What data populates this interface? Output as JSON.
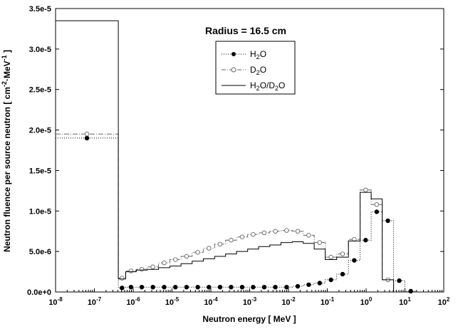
{
  "chart_data": {
    "type": "line",
    "xlabel": "Neutron energy  [ MeV ]",
    "ylabel": "Neutron fluence per source neutron  [ cm^-2·MeV^-1 ]",
    "annotation": "Radius = 16.5 cm",
    "x_scale": "log",
    "xlim": [
      1e-08,
      100
    ],
    "ylim": [
      0,
      3.5e-05
    ],
    "x_ticks": [
      -8,
      -7,
      -6,
      -5,
      -4,
      -3,
      -2,
      -1,
      0,
      1,
      2
    ],
    "y_ticks": [
      "0.0e+0",
      "5.0e-6",
      "1.0e-5",
      "1.5e-5",
      "2.0e-5",
      "2.5e-5",
      "3.0e-5",
      "3.5e-5"
    ],
    "legend_position": "top-center",
    "bin_edges": [
      1e-08,
      4.14e-07,
      6.4e-07,
      1.2e-06,
      2.3e-06,
      4.5e-06,
      8.8e-06,
      1.7e-05,
      3.3e-05,
      6.4e-05,
      0.000125,
      0.00024,
      0.00046,
      0.00089,
      0.0017,
      0.0033,
      0.0064,
      0.0125,
      0.024,
      0.046,
      0.088,
      0.175,
      0.35,
      0.7,
      1.35,
      2.6,
      5.1,
      10,
      20
    ],
    "series": [
      {
        "name": "H2O",
        "label_main": "H",
        "label_sub": "2",
        "label_tail": "O",
        "style": "dotted-filled",
        "values": [
          1.9e-05,
          5e-07,
          6e-07,
          6e-07,
          6e-07,
          6e-07,
          6e-07,
          6e-07,
          6e-07,
          6e-07,
          6e-07,
          6e-07,
          6e-07,
          6e-07,
          6e-07,
          6e-07,
          6e-07,
          7e-07,
          9e-07,
          1.1e-06,
          1.5e-06,
          2.2e-06,
          3.9e-06,
          6.4e-06,
          9.9e-06,
          8.8e-06,
          1.4e-06,
          1e-07
        ]
      },
      {
        "name": "D2O",
        "label_main": "D",
        "label_sub": "2",
        "label_tail": "O",
        "style": "dashdot-open",
        "values": [
          1.95e-05,
          1.7e-06,
          2.6e-06,
          2.8e-06,
          3.1e-06,
          3.6e-06,
          4e-06,
          4.4e-06,
          4.9e-06,
          5.4e-06,
          5.9e-06,
          6.4e-06,
          6.8e-06,
          7.1e-06,
          7.3e-06,
          7.5e-06,
          7.6e-06,
          7.5e-06,
          7e-06,
          6.1e-06,
          4.3e-06,
          4.7e-06,
          6.5e-06,
          1.26e-05,
          1.08e-05,
          1.5e-06
        ]
      },
      {
        "name": "H2O/D2O",
        "label_main": "H",
        "label_sub": "2",
        "label_tail": "O/D",
        "label_sub2": "2",
        "label_tail2": "O",
        "style": "solid",
        "values": [
          3.35e-05,
          1.6e-06,
          2.5e-06,
          2.7e-06,
          2.8e-06,
          3e-06,
          3.2e-06,
          3.5e-06,
          3.8e-06,
          4.1e-06,
          4.4e-06,
          4.7e-06,
          5e-06,
          5.3e-06,
          5.6e-06,
          5.8e-06,
          6.1e-06,
          6.2e-06,
          6e-06,
          5.3e-06,
          4e-06,
          4.3e-06,
          6.3e-06,
          1.23e-05,
          1.15e-05,
          1.5e-06
        ]
      }
    ]
  }
}
